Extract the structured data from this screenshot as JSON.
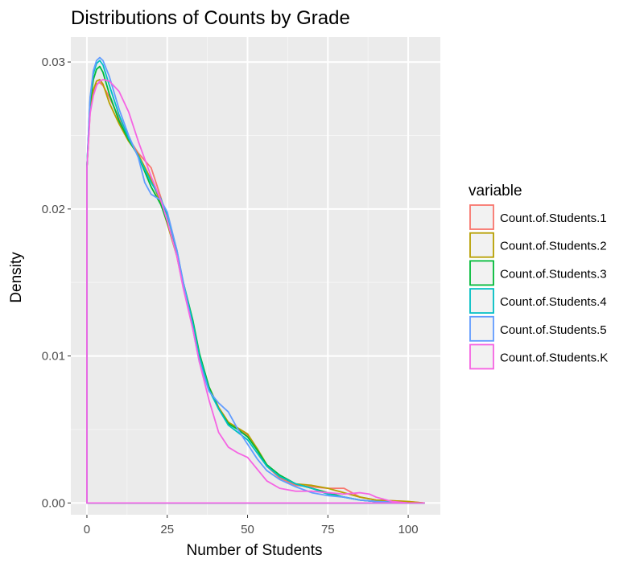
{
  "chart_data": {
    "type": "line",
    "title": "Distributions of Counts by Grade",
    "xlabel": "Number of Students",
    "ylabel": "Density",
    "xlim": [
      -5,
      110
    ],
    "ylim": [
      -0.0008,
      0.0317
    ],
    "x_ticks": [
      0,
      25,
      50,
      75,
      100
    ],
    "x_tick_labels": [
      "0",
      "25",
      "50",
      "75",
      "100"
    ],
    "y_ticks": [
      0.0,
      0.01,
      0.02,
      0.03
    ],
    "y_tick_labels": [
      "0.00",
      "0.01",
      "0.02",
      "0.03"
    ],
    "grid": true,
    "legend": {
      "title": "variable",
      "placement": "right"
    },
    "series": [
      {
        "name": "Count.of.Students.1",
        "color": "#F8766D",
        "points": [
          [
            0,
            0.0228
          ],
          [
            1,
            0.0266
          ],
          [
            2,
            0.0279
          ],
          [
            3,
            0.0285
          ],
          [
            4,
            0.0286
          ],
          [
            5,
            0.0284
          ],
          [
            7,
            0.0276
          ],
          [
            10,
            0.0262
          ],
          [
            13,
            0.0248
          ],
          [
            16,
            0.0238
          ],
          [
            20,
            0.0228
          ],
          [
            23,
            0.0208
          ],
          [
            25,
            0.0192
          ],
          [
            28,
            0.0168
          ],
          [
            30,
            0.0148
          ],
          [
            33,
            0.0122
          ],
          [
            35,
            0.0101
          ],
          [
            38,
            0.0078
          ],
          [
            41,
            0.0065
          ],
          [
            44,
            0.0055
          ],
          [
            47,
            0.005
          ],
          [
            50,
            0.0046
          ],
          [
            53,
            0.0036
          ],
          [
            56,
            0.0025
          ],
          [
            60,
            0.0017
          ],
          [
            65,
            0.0012
          ],
          [
            70,
            0.0011
          ],
          [
            75,
            0.001
          ],
          [
            80,
            0.001
          ],
          [
            85,
            0.0004
          ],
          [
            90,
            0.0002
          ],
          [
            100,
            0.0001
          ],
          [
            105,
            0.0
          ]
        ]
      },
      {
        "name": "Count.of.Students.2",
        "color": "#B79F00",
        "points": [
          [
            0,
            0.0228
          ],
          [
            1,
            0.0268
          ],
          [
            2,
            0.0281
          ],
          [
            3,
            0.0287
          ],
          [
            4,
            0.0288
          ],
          [
            5,
            0.0285
          ],
          [
            7,
            0.0272
          ],
          [
            10,
            0.0258
          ],
          [
            13,
            0.0246
          ],
          [
            16,
            0.0237
          ],
          [
            20,
            0.022
          ],
          [
            23,
            0.0204
          ],
          [
            25,
            0.019
          ],
          [
            28,
            0.0168
          ],
          [
            30,
            0.0147
          ],
          [
            33,
            0.0122
          ],
          [
            35,
            0.0101
          ],
          [
            38,
            0.0079
          ],
          [
            41,
            0.0065
          ],
          [
            44,
            0.0055
          ],
          [
            47,
            0.0051
          ],
          [
            50,
            0.0047
          ],
          [
            53,
            0.0037
          ],
          [
            56,
            0.0026
          ],
          [
            60,
            0.0018
          ],
          [
            65,
            0.0013
          ],
          [
            70,
            0.0012
          ],
          [
            75,
            0.001
          ],
          [
            80,
            0.0007
          ],
          [
            85,
            0.0004
          ],
          [
            90,
            0.0002
          ],
          [
            100,
            0.0001
          ],
          [
            105,
            0.0
          ]
        ]
      },
      {
        "name": "Count.of.Students.3",
        "color": "#00BA38",
        "points": [
          [
            0,
            0.0228
          ],
          [
            1,
            0.0272
          ],
          [
            2,
            0.0288
          ],
          [
            3,
            0.0295
          ],
          [
            4,
            0.0297
          ],
          [
            5,
            0.0293
          ],
          [
            7,
            0.0278
          ],
          [
            10,
            0.026
          ],
          [
            13,
            0.0247
          ],
          [
            16,
            0.0236
          ],
          [
            20,
            0.0215
          ],
          [
            23,
            0.0203
          ],
          [
            25,
            0.0191
          ],
          [
            28,
            0.017
          ],
          [
            30,
            0.015
          ],
          [
            33,
            0.0124
          ],
          [
            35,
            0.0102
          ],
          [
            38,
            0.0079
          ],
          [
            41,
            0.0064
          ],
          [
            44,
            0.0054
          ],
          [
            47,
            0.005
          ],
          [
            50,
            0.0045
          ],
          [
            53,
            0.0036
          ],
          [
            56,
            0.0026
          ],
          [
            60,
            0.0019
          ],
          [
            65,
            0.0013
          ],
          [
            70,
            0.001
          ],
          [
            75,
            0.0007
          ],
          [
            80,
            0.0004
          ],
          [
            85,
            0.0002
          ],
          [
            90,
            0.0001
          ],
          [
            100,
            0.0
          ],
          [
            105,
            0.0
          ]
        ]
      },
      {
        "name": "Count.of.Students.4",
        "color": "#00BFC4",
        "points": [
          [
            0,
            0.0228
          ],
          [
            1,
            0.0275
          ],
          [
            2,
            0.0292
          ],
          [
            3,
            0.0299
          ],
          [
            4,
            0.0301
          ],
          [
            5,
            0.0298
          ],
          [
            7,
            0.0284
          ],
          [
            10,
            0.0264
          ],
          [
            13,
            0.0248
          ],
          [
            16,
            0.0236
          ],
          [
            20,
            0.0218
          ],
          [
            23,
            0.0207
          ],
          [
            25,
            0.0196
          ],
          [
            28,
            0.0172
          ],
          [
            30,
            0.015
          ],
          [
            33,
            0.0122
          ],
          [
            35,
            0.01
          ],
          [
            38,
            0.0077
          ],
          [
            41,
            0.0064
          ],
          [
            44,
            0.0053
          ],
          [
            47,
            0.0048
          ],
          [
            50,
            0.0043
          ],
          [
            53,
            0.0034
          ],
          [
            56,
            0.0025
          ],
          [
            60,
            0.0018
          ],
          [
            65,
            0.0013
          ],
          [
            70,
            0.001
          ],
          [
            75,
            0.0006
          ],
          [
            80,
            0.0004
          ],
          [
            85,
            0.0002
          ],
          [
            90,
            0.0001
          ],
          [
            100,
            0.0
          ],
          [
            105,
            0.0
          ]
        ]
      },
      {
        "name": "Count.of.Students.5",
        "color": "#619CFF",
        "points": [
          [
            0,
            0.0228
          ],
          [
            1,
            0.0276
          ],
          [
            2,
            0.0294
          ],
          [
            3,
            0.0301
          ],
          [
            4,
            0.0303
          ],
          [
            5,
            0.0301
          ],
          [
            7,
            0.029
          ],
          [
            10,
            0.0268
          ],
          [
            13,
            0.025
          ],
          [
            16,
            0.0235
          ],
          [
            18,
            0.0218
          ],
          [
            20,
            0.021
          ],
          [
            23,
            0.0206
          ],
          [
            25,
            0.0198
          ],
          [
            28,
            0.0172
          ],
          [
            30,
            0.015
          ],
          [
            33,
            0.0118
          ],
          [
            35,
            0.0096
          ],
          [
            38,
            0.0076
          ],
          [
            41,
            0.0068
          ],
          [
            44,
            0.0062
          ],
          [
            47,
            0.005
          ],
          [
            50,
            0.004
          ],
          [
            53,
            0.003
          ],
          [
            56,
            0.0022
          ],
          [
            60,
            0.0016
          ],
          [
            65,
            0.0011
          ],
          [
            70,
            0.0007
          ],
          [
            75,
            0.0005
          ],
          [
            80,
            0.0004
          ],
          [
            85,
            0.0002
          ],
          [
            90,
            0.0001
          ],
          [
            100,
            0.0
          ],
          [
            105,
            0.0
          ]
        ]
      },
      {
        "name": "Count.of.Students.K",
        "color": "#F564E3",
        "points": [
          [
            0,
            0.0228
          ],
          [
            1,
            0.0265
          ],
          [
            2,
            0.0277
          ],
          [
            3,
            0.0284
          ],
          [
            4,
            0.0287
          ],
          [
            5,
            0.0288
          ],
          [
            7,
            0.0287
          ],
          [
            10,
            0.028
          ],
          [
            13,
            0.0266
          ],
          [
            16,
            0.0246
          ],
          [
            20,
            0.0222
          ],
          [
            23,
            0.0206
          ],
          [
            25,
            0.0192
          ],
          [
            28,
            0.0168
          ],
          [
            30,
            0.0146
          ],
          [
            33,
            0.0118
          ],
          [
            35,
            0.0096
          ],
          [
            38,
            0.007
          ],
          [
            41,
            0.0048
          ],
          [
            44,
            0.0038
          ],
          [
            47,
            0.0034
          ],
          [
            50,
            0.0031
          ],
          [
            53,
            0.0023
          ],
          [
            56,
            0.0015
          ],
          [
            60,
            0.001
          ],
          [
            65,
            0.0008
          ],
          [
            70,
            0.0008
          ],
          [
            75,
            0.0007
          ],
          [
            80,
            0.0006
          ],
          [
            85,
            0.0007
          ],
          [
            88,
            0.0006
          ],
          [
            90,
            0.0004
          ],
          [
            95,
            0.0001
          ],
          [
            100,
            0.0
          ],
          [
            105,
            0.0
          ]
        ]
      }
    ]
  }
}
